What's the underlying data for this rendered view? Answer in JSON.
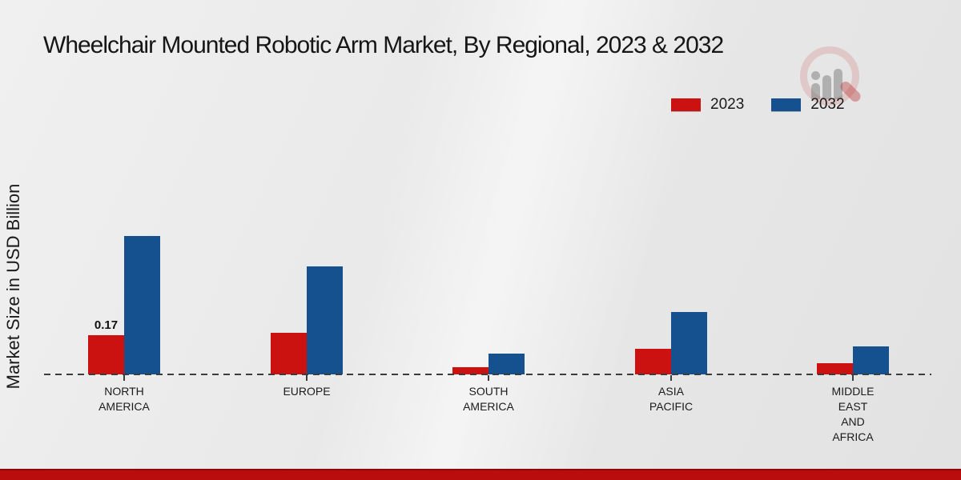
{
  "title": "Wheelchair Mounted Robotic Arm Market, By Regional, 2023 & 2032",
  "y_axis": {
    "label": "Market Size in USD Billion"
  },
  "legend": {
    "position": "top-right",
    "items": [
      {
        "label": "2023",
        "color": "#cc1111"
      },
      {
        "label": "2032",
        "color": "#15508f"
      }
    ]
  },
  "watermark": {
    "icon": "market-research-future-logo"
  },
  "accent_colors": {
    "footer_strip": "#b90d0d",
    "footer_strip_edge": "#8f0707",
    "baseline": "#3c3c3c"
  },
  "chart_data": {
    "type": "bar",
    "title": "Wheelchair Mounted Robotic Arm Market, By Regional, 2023 & 2032",
    "ylabel": "Market Size in USD Billion",
    "xlabel": "",
    "ylim": [
      0,
      0.65
    ],
    "grid": false,
    "baseline_style": "dashed",
    "legend_position": "top-right",
    "categories": [
      "NORTH\nAMERICA",
      "EUROPE",
      "SOUTH\nAMERICA",
      "ASIA\nPACIFIC",
      "MIDDLE\nEAST\nAND\nAFRICA"
    ],
    "series": [
      {
        "name": "2023",
        "color": "#cc1111",
        "values": [
          0.17,
          0.18,
          0.03,
          0.11,
          0.05
        ],
        "data_labels": [
          "0.17",
          "",
          "",
          "",
          ""
        ]
      },
      {
        "name": "2032",
        "color": "#15508f",
        "values": [
          0.6,
          0.47,
          0.09,
          0.27,
          0.12
        ],
        "data_labels": [
          "",
          "",
          "",
          "",
          ""
        ]
      }
    ]
  }
}
